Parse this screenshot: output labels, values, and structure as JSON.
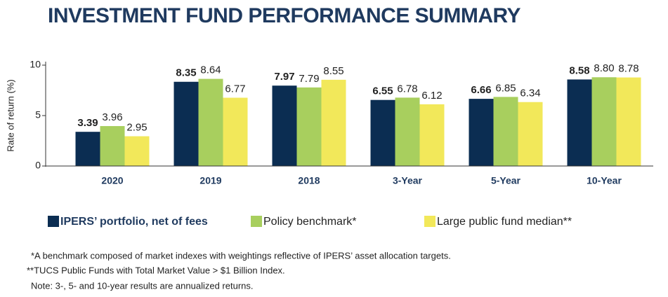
{
  "chart_data": {
    "type": "bar",
    "title": "INVESTMENT FUND PERFORMANCE SUMMARY",
    "y_label": "Rate of return (%)",
    "categories": [
      "2020",
      "2019",
      "2018",
      "3-Year",
      "5-Year",
      "10-Year"
    ],
    "series": [
      {
        "name": "IPERS’ portfolio, net of fees",
        "color": "#0b2d52",
        "values": [
          3.39,
          8.35,
          7.97,
          6.55,
          6.66,
          8.58
        ],
        "value_labels": [
          "3.39",
          "8.35",
          "7.97",
          "6.55",
          "6.66",
          "8.58"
        ]
      },
      {
        "name": "Policy benchmark*",
        "color": "#a8cf5e",
        "values": [
          3.96,
          8.64,
          7.79,
          6.78,
          6.85,
          8.8
        ],
        "value_labels": [
          "3.96",
          "8.64",
          "7.79",
          "6.78",
          "6.85",
          "8.80"
        ]
      },
      {
        "name": "Large public fund median**",
        "color": "#f2e85a",
        "values": [
          2.95,
          6.77,
          8.55,
          6.12,
          6.34,
          8.78
        ],
        "value_labels": [
          "2.95",
          "6.77",
          "8.55",
          "6.12",
          "6.34",
          "8.78"
        ]
      }
    ],
    "ylim": [
      0,
      10
    ],
    "yticks": [
      0,
      5,
      10
    ],
    "grid": false,
    "notes": [
      "*A benchmark composed of market indexes with weightings reflective of IPERS’ asset allocation targets.",
      "**TUCS Public Funds with Total Market Value > $1 Billion Index.",
      "Note: 3-, 5- and 10-year results are annualized returns."
    ]
  }
}
